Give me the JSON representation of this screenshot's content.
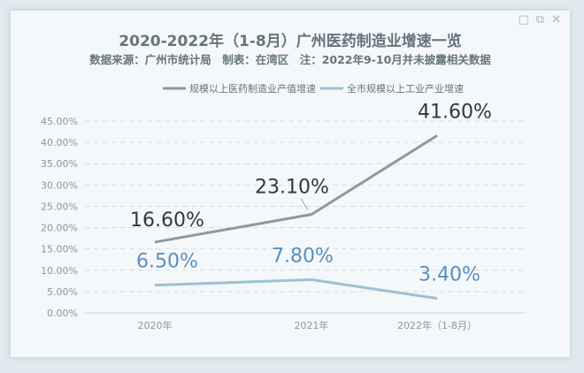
{
  "window": {
    "minimize_glyph": "□",
    "restore_glyph": "⧉",
    "close_glyph": "✕"
  },
  "chart_data": {
    "type": "line",
    "title": "2020-2022年（1-8月）广州医药制造业增速一览",
    "subtitle": "数据来源：广州市统计局　制表：在湾区　注：2022年9-10月并未披露相关数据",
    "categories": [
      "2020年",
      "2021年",
      "2022年（1-8月）"
    ],
    "series": [
      {
        "name": "规模以上医药制造业产值增速",
        "values": [
          16.6,
          23.1,
          41.6
        ],
        "labels": [
          "16.60%",
          "23.10%",
          "41.60%"
        ],
        "color": "#8a9aa2"
      },
      {
        "name": "全市规模以上工业产业增速",
        "values": [
          6.5,
          7.8,
          3.4
        ],
        "labels": [
          "6.50%",
          "7.80%",
          "3.40%"
        ],
        "color": "#9cc3d1"
      }
    ],
    "yticks": [
      0,
      5,
      10,
      15,
      20,
      25,
      30,
      35,
      40,
      45
    ],
    "ytick_labels": [
      "0.00%",
      "5.00%",
      "10.00%",
      "15.00%",
      "20.00%",
      "25.00%",
      "30.00%",
      "35.00%",
      "40.00%",
      "45.00%"
    ],
    "ylim": [
      0,
      45
    ],
    "grid": true,
    "legend_position": "top-center",
    "label_colors": [
      "#2b3a44",
      "#5a8fbf"
    ]
  }
}
